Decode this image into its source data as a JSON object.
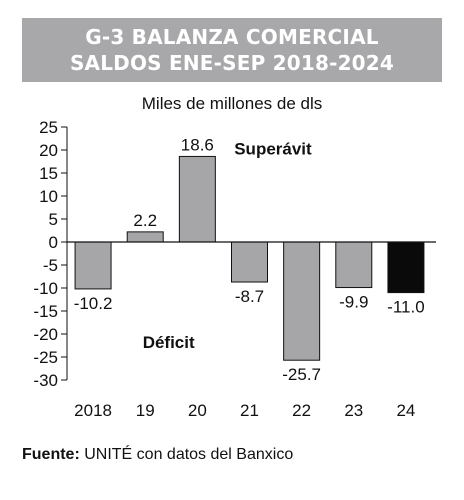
{
  "header": {
    "title_line1": "G-3        BALANZA COMERCIAL",
    "title_line2": "SALDOS ENE-SEP 2018-2024"
  },
  "colors": {
    "header_bg": "#a8a8aa",
    "bar_default": "#a6a6a8",
    "bar_highlight": "#0a0a0a"
  },
  "chart_data": {
    "type": "bar",
    "ylabel": "Miles de millones de dls",
    "categories": [
      "2018",
      "19",
      "20",
      "21",
      "22",
      "23",
      "24"
    ],
    "values": [
      -10.2,
      2.2,
      18.6,
      -8.7,
      -25.7,
      -9.9,
      -11.0
    ],
    "data_labels": [
      "-10.2",
      "2.2",
      "18.6",
      "-8.7",
      "-25.7",
      "-9.9",
      "-11.0"
    ],
    "highlight_index": 6,
    "ylim": [
      -30,
      25
    ],
    "yticks": [
      25,
      20,
      15,
      10,
      5,
      0,
      -5,
      -10,
      -15,
      -20,
      -25,
      -30
    ],
    "annotations": [
      {
        "text": "Superávit",
        "x_category": "21",
        "y": 19
      },
      {
        "text": "Déficit",
        "x_category": "19",
        "y": -23
      }
    ],
    "grid": false
  },
  "source": {
    "label": "Fuente:",
    "text": " UNITÉ con datos del Banxico"
  }
}
